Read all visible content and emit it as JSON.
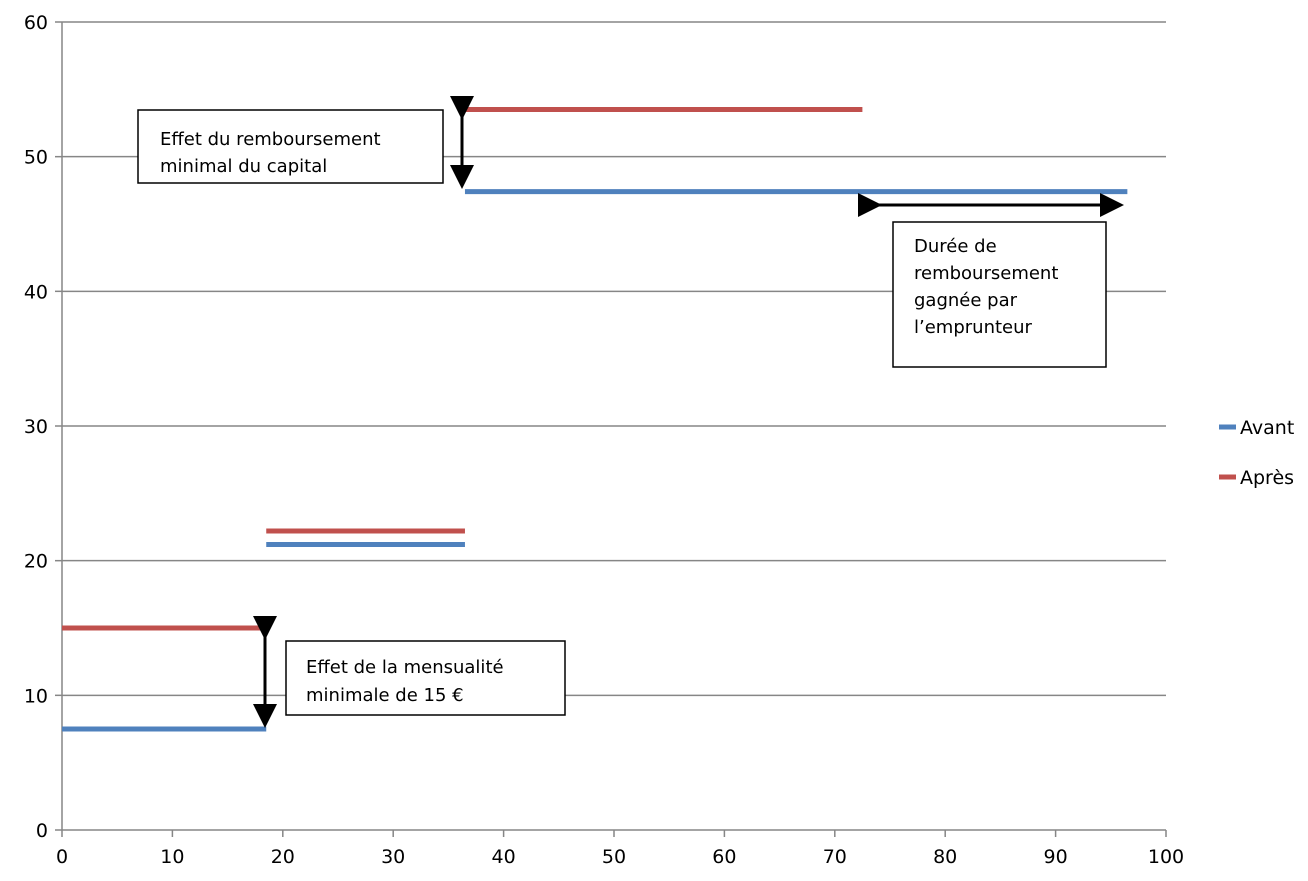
{
  "chart_data": {
    "type": "line",
    "title": "",
    "xlabel": "",
    "ylabel": "",
    "xlim": [
      0,
      100
    ],
    "ylim": [
      0,
      60
    ],
    "x_ticks": [
      "0",
      "10",
      "20",
      "30",
      "40",
      "50",
      "60",
      "70",
      "80",
      "90",
      "100"
    ],
    "y_ticks": [
      "0",
      "10",
      "20",
      "30",
      "40",
      "50",
      "60"
    ],
    "grid": "horizontal",
    "legend_position": "right",
    "series": [
      {
        "name": "Avant",
        "color": "#4F81BD",
        "segments": [
          {
            "x": [
              0,
              18.5
            ],
            "y": [
              7.5,
              7.5
            ]
          },
          {
            "x": [
              18.5,
              36.5
            ],
            "y": [
              21.2,
              21.2
            ]
          },
          {
            "x": [
              36.5,
              96.5
            ],
            "y": [
              47.4,
              47.4
            ]
          }
        ]
      },
      {
        "name": "Après",
        "color": "#C0504D",
        "segments": [
          {
            "x": [
              0,
              18.5
            ],
            "y": [
              15,
              15
            ]
          },
          {
            "x": [
              18.5,
              36.5
            ],
            "y": [
              22.2,
              22.2
            ]
          },
          {
            "x": [
              36.5,
              72.5
            ],
            "y": [
              53.5,
              53.5
            ]
          }
        ]
      }
    ],
    "annotations": [
      {
        "lines": [
          "Effet du remboursement",
          "minimal du capital"
        ]
      },
      {
        "lines": [
          "Durée de",
          "remboursement",
          "gagnée par",
          "l’emprunteur"
        ]
      },
      {
        "lines": [
          "Effet de la mensualité",
          "minimale de 15 €"
        ]
      }
    ]
  }
}
